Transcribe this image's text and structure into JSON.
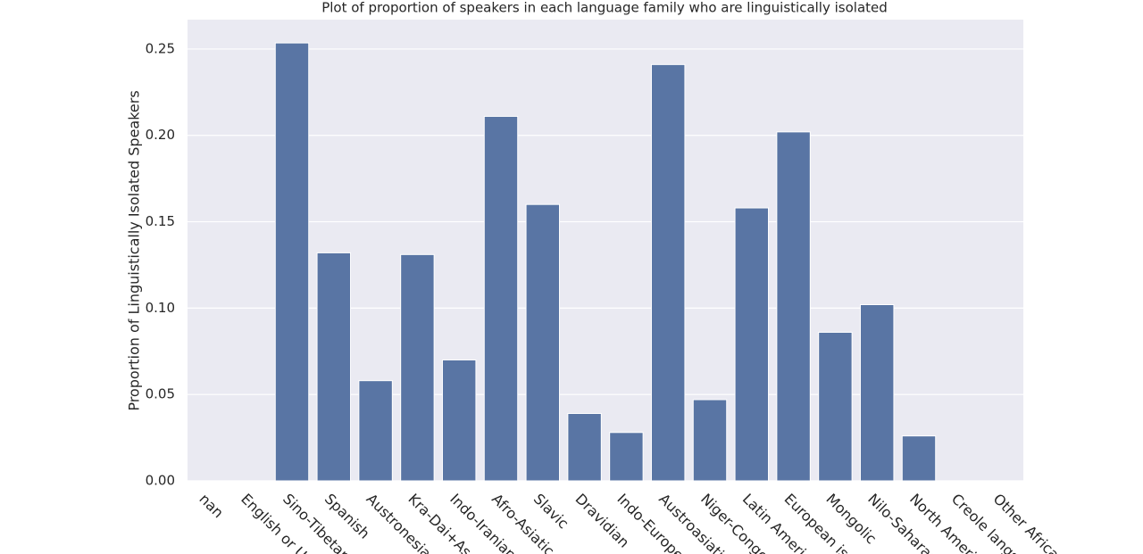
{
  "chart_data": {
    "type": "bar",
    "title": "Plot of proportion of speakers in each language family who are linguistically isolated",
    "y_label": "Proportion of Linguistically Isolated Speakers",
    "categories": [
      "nan",
      "English or U",
      "Sino-Tibetan",
      "Spanish",
      "Austronesian",
      "Kra-Dai+As",
      "Indo-Iranian",
      "Afro-Asiatic",
      "Slavic",
      "Dravidian",
      "Indo-Europe",
      "Austroasiatic",
      "Niger-Congo",
      "Latin Americ",
      "European is",
      "Mongolic",
      "Nilo-Saharan",
      "North Ameri",
      "Creole langs",
      "Other African"
    ],
    "values": [
      0,
      0,
      0.2535,
      0.132,
      0.058,
      0.131,
      0.07,
      0.211,
      0.16,
      0.039,
      0.028,
      0.241,
      0.047,
      0.158,
      0.202,
      0.086,
      0.102,
      0.026,
      0,
      0
    ],
    "color": "#5975a4",
    "ylim": [
      0,
      0.267
    ],
    "yticks": [
      {
        "value": 0,
        "label": "0.00"
      },
      {
        "value": 0.05,
        "label": "0.05"
      },
      {
        "value": 0.1,
        "label": "0.10"
      },
      {
        "value": 0.15,
        "label": "0.15"
      },
      {
        "value": 0.2,
        "label": "0.20"
      },
      {
        "value": 0.25,
        "label": "0.25"
      }
    ],
    "grid": true
  }
}
